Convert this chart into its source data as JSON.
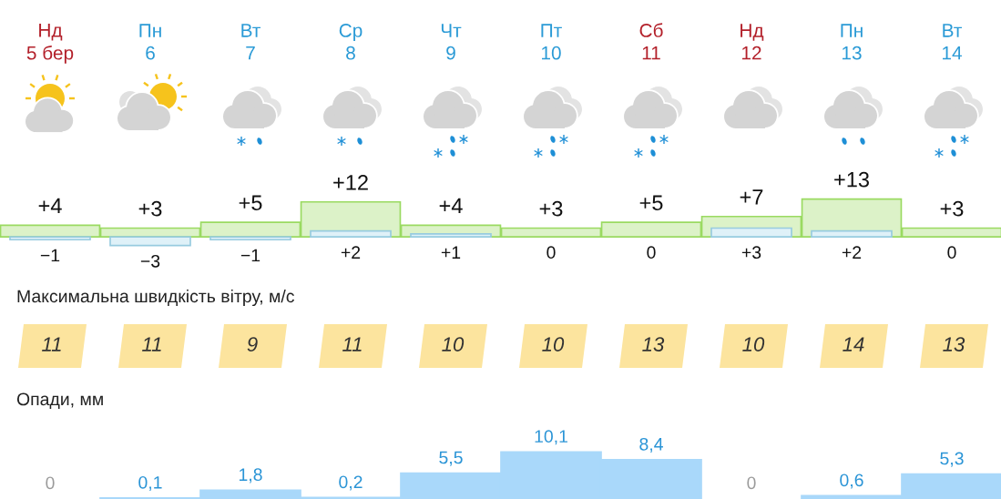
{
  "chart_data": [
    {
      "type": "bar",
      "categories": [
        "Нд\n5 бер",
        "Пн\n6",
        "Вт\n7",
        "Ср\n8",
        "Чт\n9",
        "Пт\n10",
        "Сб\n11",
        "Нд\n12",
        "Пн\n13",
        "Вт\n14"
      ],
      "series": [
        {
          "color": "#dcf2c8",
          "values": [
            4,
            3,
            5,
            12,
            4,
            3,
            5,
            7,
            13,
            3
          ],
          "value_labels": [
            "+4",
            "+3",
            "+5",
            "+12",
            "+4",
            "+3",
            "+5",
            "+7",
            "+13",
            "+3"
          ]
        },
        {
          "color": "#dff1f8",
          "values": [
            -1,
            -3,
            -1,
            2,
            1,
            0,
            0,
            3,
            2,
            0
          ],
          "value_labels": [
            "−1",
            "−3",
            "−1",
            "+2",
            "+1",
            "0",
            "0",
            "+3",
            "+2",
            "0"
          ]
        }
      ]
    },
    {
      "type": "other",
      "title": "Максимальна швидкість вітру, м/с",
      "values": [
        11,
        11,
        9,
        11,
        10,
        10,
        13,
        10,
        14,
        13
      ],
      "color": "#fce49e",
      "data_labels": true
    },
    {
      "type": "bar",
      "title": "Опади, мм",
      "values": [
        0,
        0.1,
        1.8,
        0.2,
        5.5,
        10.1,
        8.4,
        0,
        0.6,
        5.3
      ],
      "value_labels": [
        "0",
        "0,1",
        "1,8",
        "0,2",
        "5,5",
        "10,1",
        "8,4",
        "0",
        "0,6",
        "5,3"
      ],
      "color": "#a9d8fa"
    }
  ]
}
